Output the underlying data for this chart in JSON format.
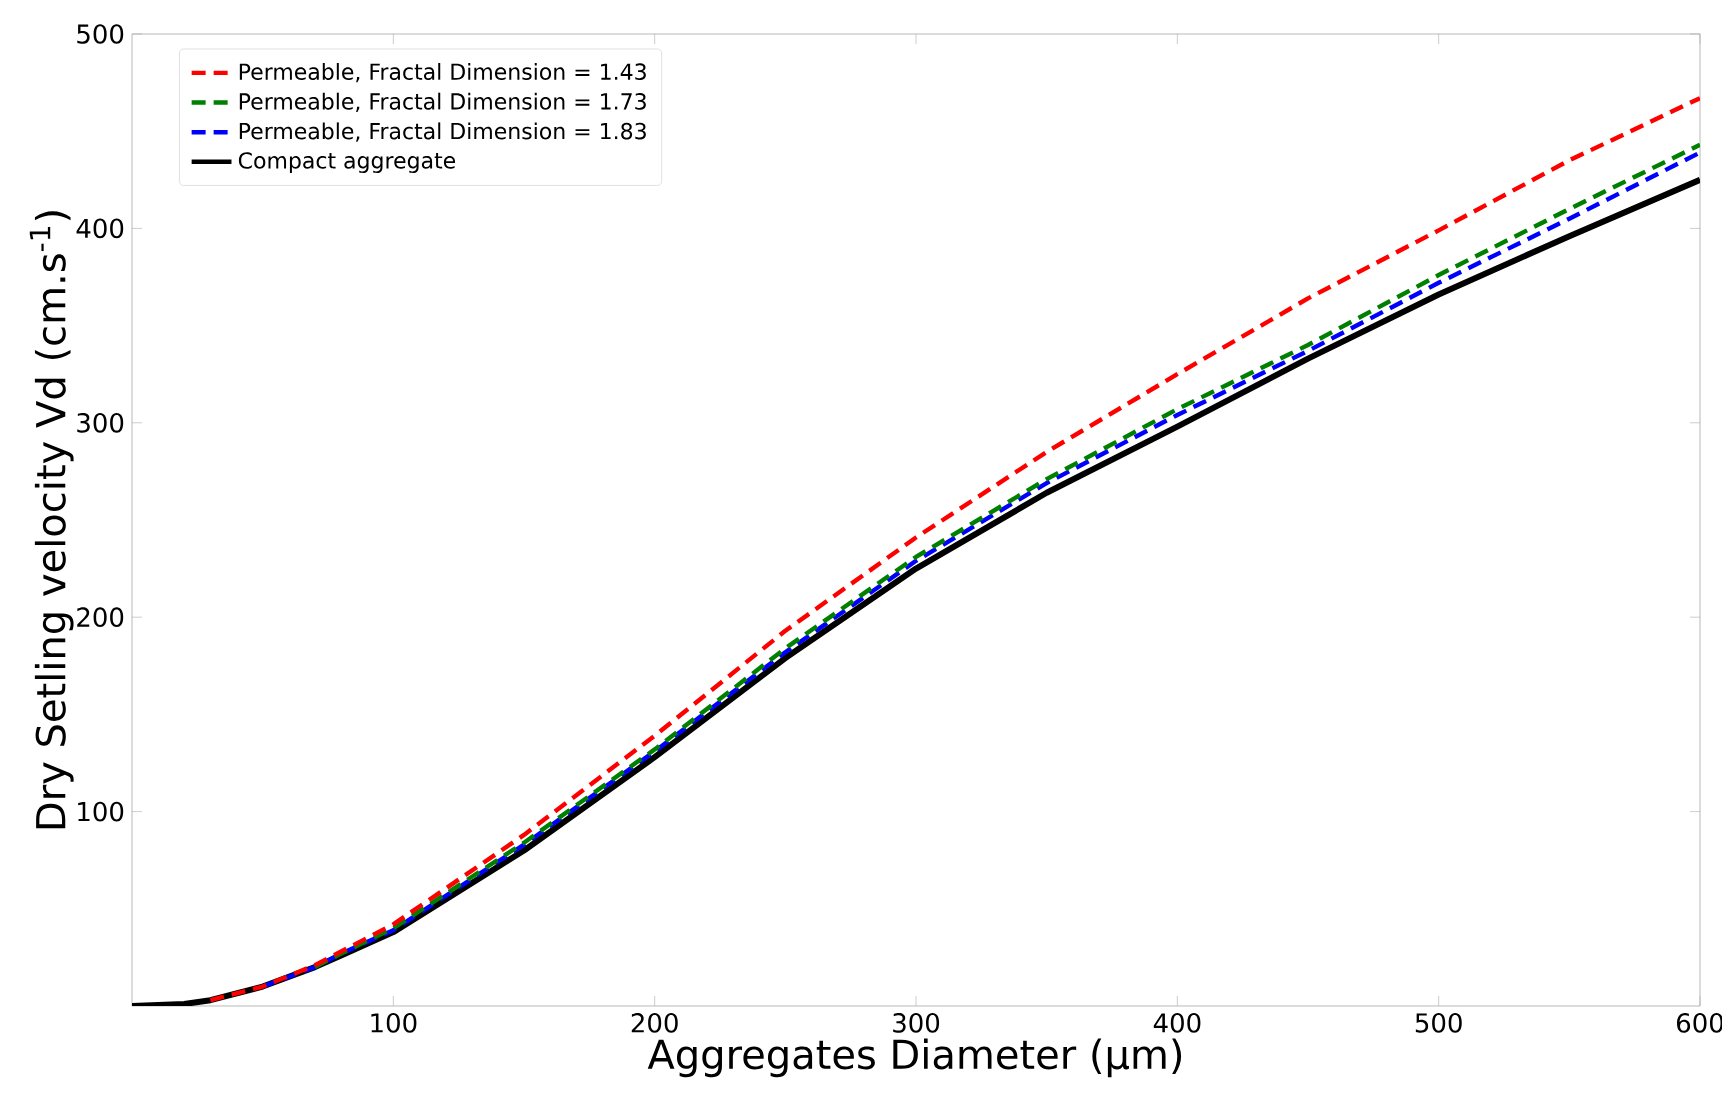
{
  "chart_data": {
    "type": "line",
    "xlabel": "Aggregates Diameter (μm)",
    "ylabel": "Dry Setling velocity  Vd (cm.s$^{-1}$)",
    "xlim": [
      0,
      600
    ],
    "ylim": [
      0,
      500
    ],
    "xticks": [
      100,
      200,
      300,
      400,
      500,
      600
    ],
    "yticks": [
      100,
      200,
      300,
      400,
      500
    ],
    "grid": false,
    "legend": "top left",
    "marker": "none",
    "x": [
      0,
      20,
      30,
      50,
      70,
      80,
      100,
      150,
      200,
      250,
      300,
      350,
      400,
      450,
      500,
      550,
      600
    ],
    "series": [
      {
        "name": "Permeable, Fractal Dimension = 1.43",
        "color": "#ff0000",
        "line_style": "dashed",
        "values": [
          null,
          null,
          3,
          10,
          21,
          28,
          42,
          88,
          139,
          193,
          241,
          285,
          325,
          364,
          399,
          435,
          467
        ]
      },
      {
        "name": "Permeable, Fractal Dimension = 1.73",
        "color": "#008000",
        "line_style": "dashed",
        "values": [
          null,
          null,
          null,
          null,
          20,
          27,
          40,
          84,
          132,
          184,
          231,
          271,
          307,
          340,
          376,
          410,
          443
        ]
      },
      {
        "name": "Permeable, Fractal Dimension = 1.83",
        "color": "#0000ff",
        "line_style": "dashed",
        "values": [
          null,
          null,
          null,
          10,
          20,
          27,
          39,
          83,
          131,
          182,
          229,
          269,
          304,
          337,
          372,
          405,
          439
        ]
      },
      {
        "name": "Compact aggregate",
        "color": "#000000",
        "line_style": "solid",
        "values": [
          0,
          1,
          3,
          10,
          20,
          26,
          38,
          80,
          128,
          179,
          225,
          264,
          298,
          333,
          366,
          396,
          425
        ]
      }
    ]
  }
}
